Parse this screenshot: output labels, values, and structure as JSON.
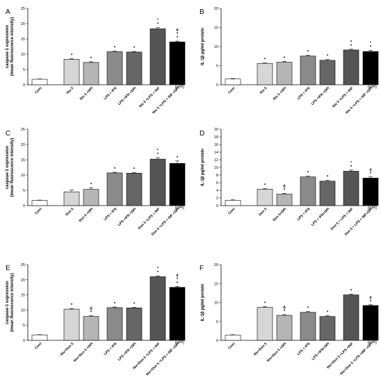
{
  "panel_shades": [
    "#ffffff",
    "#d6d6d6",
    "#b5b5b5",
    "#8a8a8a",
    "#666666",
    "#555555",
    "#000000"
  ],
  "chart_data": [
    {
      "type": "bar",
      "panel": "A",
      "ylabel": [
        "caspase-1 expression",
        "(mean fluorescence intensity)"
      ],
      "ylim": [
        0,
        25
      ],
      "yticks": [
        0,
        5,
        10,
        15,
        20,
        25
      ],
      "unit": "[µM]",
      "categories": [
        "Cont",
        "Niv 5",
        "Niv 5 +DPI",
        "LPS + IFN",
        "LPS +IFN +DPI",
        "Niv 5 +LPS + INF",
        "Niv 5 +LPS + INF +DPI"
      ],
      "values": [
        1.8,
        8.3,
        7.3,
        10.8,
        10.7,
        18.3,
        14.0
      ],
      "errors": [
        0.1,
        0.2,
        0.2,
        0.2,
        0.2,
        0.4,
        0.3
      ],
      "annotations": [
        "",
        "*",
        "*",
        "*",
        "*",
        "°\n*",
        "#\n*\n*"
      ]
    },
    {
      "type": "bar",
      "panel": "B",
      "ylabel": [
        "IL-1β pg/ml protein"
      ],
      "ylim": [
        0,
        20
      ],
      "yticks": [
        0,
        5,
        10,
        15,
        20
      ],
      "unit": "[µM]",
      "categories": [
        "Cont",
        "Niv 5",
        "Niv 5 +DPI",
        "LPS + IFN",
        "LPS +IFN +DPI",
        "Niv 5 +LPS + INF",
        "Niv 5 +LPS + INF +DPI"
      ],
      "values": [
        1.5,
        5.6,
        5.9,
        7.5,
        6.4,
        9.1,
        8.7
      ],
      "errors": [
        0.1,
        0.1,
        0.2,
        0.2,
        0.2,
        0.2,
        0.3
      ],
      "annotations": [
        "",
        "*",
        "*",
        "*",
        "*",
        "*\n*",
        "°\n*"
      ]
    },
    {
      "type": "bar",
      "panel": "C",
      "ylabel": [
        "caspase-1 expression",
        "(mean fluorescence intensity)"
      ],
      "ylim": [
        0,
        25
      ],
      "yticks": [
        0,
        5,
        10,
        15,
        20,
        25
      ],
      "unit": "[µM]",
      "categories": [
        "Cont",
        "Don 5",
        "Don 5 +DPI",
        "LPS + IFN",
        "LPS +IFN +DPI",
        "Don 5 +LPS + INF",
        "Don 5 +LPS + INF +DPI"
      ],
      "values": [
        1.7,
        4.5,
        5.3,
        10.7,
        10.6,
        15.2,
        13.8
      ],
      "errors": [
        0.1,
        0.6,
        0.5,
        0.2,
        0.2,
        0.5,
        0.8
      ],
      "annotations": [
        "",
        "",
        "*",
        "*",
        "*",
        "°\n*",
        "*"
      ]
    },
    {
      "type": "bar",
      "panel": "D",
      "ylabel": [
        "IL-1β pg/ml protein"
      ],
      "ylim": [
        0,
        20
      ],
      "yticks": [
        0,
        2,
        4,
        6,
        8,
        10,
        12,
        14,
        16,
        18,
        20
      ],
      "unit": "[µM]",
      "categories": [
        "Cont",
        "Don 5",
        "Don 5+DPI",
        "LPS + IFN",
        "LPS + IFN+DPI",
        "Don 5 + LPS + INF",
        "Don 5 + LPS + INF+DPI"
      ],
      "values": [
        1.4,
        4.3,
        3.0,
        7.5,
        6.4,
        9.0,
        7.2
      ],
      "errors": [
        0.1,
        0.2,
        0.2,
        0.2,
        0.2,
        0.3,
        0.3
      ],
      "annotations": [
        "",
        "*",
        "ö\n*",
        "*",
        "*",
        "°\n*",
        "#\n*"
      ]
    },
    {
      "type": "bar",
      "panel": "E",
      "ylabel": [
        "caspase-1 expression",
        "(mean fluorescence intensity)"
      ],
      "ylim": [
        0,
        25
      ],
      "yticks": [
        0,
        5,
        10,
        15,
        20,
        25
      ],
      "unit": "[µM]",
      "categories": [
        "Cont",
        "Niv+Don 5",
        "Niv+Don 5 +DPI",
        "LPS + IFN",
        "LPS +IFN +DPI",
        "Niv+Don 5 +LPS + INF",
        "Niv+Don 5 +LPS + INF +DPI"
      ],
      "values": [
        1.8,
        10.3,
        7.9,
        10.8,
        10.7,
        21.0,
        17.5
      ],
      "errors": [
        0.1,
        0.2,
        0.2,
        0.2,
        0.2,
        0.3,
        0.3
      ],
      "annotations": [
        "",
        "*",
        "ö\n*",
        "*",
        "*",
        "°\n*",
        "#\n*\n*"
      ]
    },
    {
      "type": "bar",
      "panel": "F",
      "ylabel": [
        "IL-1β pg/ml protein"
      ],
      "ylim": [
        0,
        20
      ],
      "yticks": [
        0,
        5,
        10,
        15,
        20
      ],
      "unit": "[µM]",
      "categories": [
        "Cont",
        "Niv+Don 5",
        "Niv+Don 5 +DPI",
        "LPS + IFN",
        "LPS +IFN+DPI",
        "Niv+Don 5 +LPS +INF",
        "Niv+Don 5 +LPS +INF +DPI"
      ],
      "values": [
        1.4,
        8.7,
        6.6,
        7.4,
        6.3,
        12.0,
        9.2
      ],
      "errors": [
        0.1,
        0.2,
        0.2,
        0.2,
        0.2,
        0.2,
        0.2
      ],
      "annotations": [
        "",
        "*",
        "ö\n*",
        "*",
        "*",
        "*",
        "#\n*"
      ]
    }
  ]
}
